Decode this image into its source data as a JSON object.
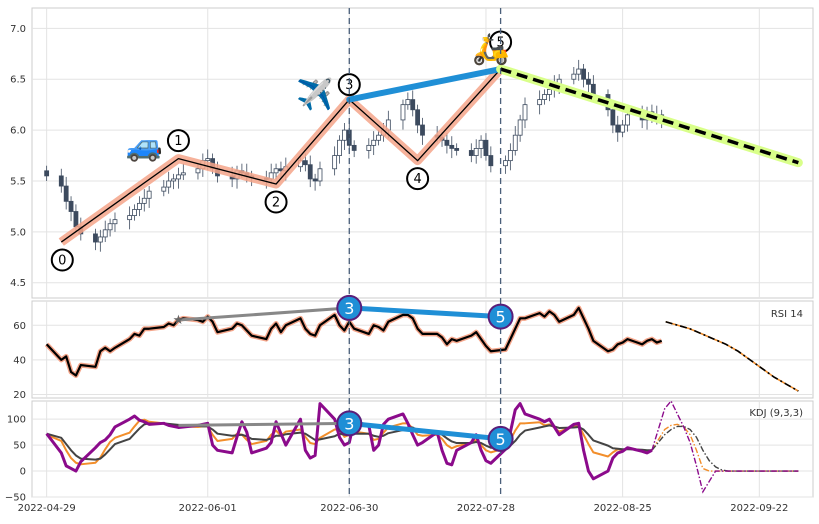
{
  "chart_data": [
    {
      "panel": "price",
      "type": "candlestick",
      "title": "",
      "ylim": [
        4.35,
        7.2
      ],
      "yticks": [
        4.5,
        5.0,
        5.5,
        6.0,
        6.5,
        7.0
      ],
      "ytick_labels": [
        "4.5",
        "5.0",
        "5.5",
        "6.0",
        "6.5",
        "7.0"
      ],
      "xlim": [
        "2022-04-26",
        "2022-10-03"
      ],
      "xticks": [
        "2022-04-29",
        "2022-06-01",
        "2022-06-30",
        "2022-07-28",
        "2022-08-25",
        "2022-09-22"
      ],
      "grid": true,
      "ohlc_close": [
        5.55,
        5.45,
        5.3,
        5.2,
        5.05,
        4.98,
        4.9,
        4.95,
        5.02,
        5.08,
        5.12,
        5.16,
        5.22,
        5.28,
        5.33,
        5.4,
        5.44,
        5.5,
        5.52,
        5.56,
        5.58,
        5.62,
        5.7,
        5.72,
        5.62,
        5.55,
        5.52,
        5.6,
        5.58,
        5.55,
        5.53,
        5.52,
        5.58,
        5.62,
        5.6,
        5.64,
        5.7,
        5.66,
        5.52,
        5.5,
        5.62,
        5.75,
        5.9,
        6.0,
        5.85,
        5.8,
        5.85,
        5.9,
        5.95,
        6.0,
        6.1,
        6.25,
        6.3,
        6.2,
        6.05,
        5.95,
        5.93,
        5.9,
        5.85,
        5.82,
        5.8,
        5.75,
        5.82,
        5.9,
        5.75,
        5.65,
        5.7,
        5.8,
        5.95,
        6.1,
        6.25,
        6.3,
        6.35,
        6.4,
        6.45,
        6.5,
        6.55,
        6.6,
        6.5,
        6.45,
        6.35,
        6.2,
        6.05,
        5.98,
        6.05,
        6.15,
        6.1,
        6.18,
        6.12,
        6.15,
        6.1
      ],
      "zigzag_points": [
        {
          "label": "0",
          "date": "2022-05-02",
          "price": 4.9
        },
        {
          "label": "1",
          "date": "2022-05-26",
          "price": 5.72
        },
        {
          "label": "2",
          "date": "2022-06-15",
          "price": 5.47
        },
        {
          "label": "3",
          "date": "2022-06-30",
          "price": 6.3
        },
        {
          "label": "4",
          "date": "2022-07-14",
          "price": 5.7
        },
        {
          "label": "5",
          "date": "2022-07-31",
          "price": 6.6
        }
      ],
      "projection": {
        "from": {
          "date": "2022-07-31",
          "price": 6.6
        },
        "to": {
          "date": "2022-09-30",
          "price": 5.68
        }
      },
      "divergence_line": {
        "from": "3",
        "to": "5"
      },
      "vlines": [
        "2022-06-30",
        "2022-07-31"
      ],
      "icons": [
        {
          "name": "car-icon",
          "glyph": "🚙",
          "date": "2022-05-19",
          "price": 5.75
        },
        {
          "name": "airplane-icon",
          "glyph": "✈️",
          "date": "2022-06-23",
          "price": 6.25
        },
        {
          "name": "scooter-icon",
          "glyph": "🛵",
          "date": "2022-07-29",
          "price": 6.7
        }
      ],
      "colors": {
        "up": "#ffffff",
        "down": "#3c4a5e",
        "zigzag": "#000000",
        "zigzag_glow": "#f4a58a",
        "blue": "#1f8fd6",
        "projection": "#000000",
        "projection_glow": "#d9ff8a",
        "vline": "#4a5f7a"
      }
    },
    {
      "panel": "rsi",
      "type": "line",
      "legend": "RSI 14",
      "ylim": [
        18,
        74
      ],
      "yticks": [
        20,
        40,
        60
      ],
      "ytick_labels": [
        "20",
        "40",
        "60"
      ],
      "values": [
        49,
        40,
        42,
        33,
        31,
        37,
        36,
        45,
        47,
        45,
        47,
        52,
        55,
        54,
        58,
        58,
        59,
        61,
        60,
        63,
        64,
        63,
        62,
        65,
        62,
        56,
        58,
        61,
        60,
        57,
        54,
        52,
        58,
        61,
        56,
        60,
        64,
        58,
        55,
        54,
        60,
        66,
        60,
        57,
        62,
        58,
        55,
        60,
        59,
        57,
        62,
        66,
        66,
        64,
        58,
        55,
        55,
        53,
        49,
        52,
        51,
        54,
        56,
        52,
        48,
        45,
        46,
        52,
        58,
        64,
        64,
        67,
        65,
        68,
        66,
        62,
        66,
        70,
        64,
        58,
        51,
        45,
        46,
        49,
        50,
        52,
        49,
        51,
        52,
        50,
        51
      ],
      "projection": [
        62,
        60,
        58,
        55,
        52,
        49,
        45,
        40,
        35,
        30,
        26,
        22
      ],
      "markers": [
        {
          "label": "3",
          "date": "2022-06-30",
          "value": 70
        },
        {
          "label": "5",
          "date": "2022-07-31",
          "value": 65
        }
      ],
      "gray_line": {
        "from": {
          "date": "2022-05-26",
          "value": 63
        },
        "to": {
          "date": "2022-06-30",
          "value": 70
        }
      },
      "colors": {
        "line": "#000000",
        "glow": "#f4a58a",
        "blue": "#1f8fd6",
        "gray": "#888888",
        "proj_a": "#000000",
        "proj_b": "#f28e2b"
      }
    },
    {
      "panel": "kdj",
      "type": "line",
      "legend": "KDJ (9,3,3)",
      "ylim": [
        -50,
        135
      ],
      "yticks": [
        -50,
        0,
        50,
        100
      ],
      "ytick_labels": [
        "−50",
        "0",
        "50",
        "100"
      ],
      "series": [
        {
          "key": "K",
          "color": "#f28e2b",
          "values": [
            70,
            58,
            40,
            25,
            16,
            13,
            16,
            26,
            42,
            56,
            64,
            74,
            86,
            97,
            99,
            95,
            92,
            90,
            88,
            88,
            86,
            85,
            86,
            86,
            70,
            58,
            62,
            72,
            70,
            60,
            52,
            58,
            70,
            78,
            68,
            76,
            80,
            66,
            54,
            52,
            64,
            80,
            80,
            66,
            70,
            76,
            72,
            60,
            62,
            74,
            84,
            92,
            92,
            82,
            70,
            68,
            70,
            62,
            50,
            44,
            48,
            54,
            60,
            50,
            40,
            36,
            44,
            60,
            78,
            92,
            92,
            94,
            88,
            90,
            84,
            76,
            86,
            88,
            70,
            52,
            36,
            28,
            36,
            42,
            40,
            44,
            40,
            38,
            40
          ]
        },
        {
          "key": "D",
          "color": "#444444",
          "values": [
            72,
            64,
            52,
            40,
            30,
            24,
            22,
            24,
            32,
            42,
            52,
            62,
            72,
            82,
            90,
            92,
            92,
            91,
            90,
            89,
            88,
            87,
            86,
            86,
            80,
            72,
            68,
            69,
            70,
            67,
            62,
            60,
            63,
            68,
            68,
            71,
            74,
            72,
            66,
            60,
            61,
            67,
            72,
            70,
            70,
            72,
            72,
            68,
            66,
            68,
            73,
            79,
            84,
            84,
            79,
            75,
            73,
            70,
            63,
            57,
            54,
            54,
            56,
            54,
            49,
            45,
            44,
            49,
            58,
            70,
            78,
            84,
            86,
            88,
            86,
            83,
            84,
            85,
            80,
            70,
            59,
            49,
            44,
            43,
            42,
            42,
            41,
            40,
            40
          ]
        },
        {
          "key": "J",
          "color": "#8b0a8b",
          "values": [
            72,
            35,
            10,
            5,
            0,
            18,
            45,
            55,
            60,
            70,
            85,
            100,
            106,
            98,
            95,
            90,
            92,
            88,
            86,
            84,
            85,
            88,
            90,
            92,
            50,
            40,
            35,
            66,
            95,
            75,
            35,
            44,
            55,
            95,
            72,
            50,
            100,
            40,
            25,
            30,
            130,
            100,
            65,
            50,
            55,
            95,
            88,
            40,
            50,
            90,
            100,
            110,
            92,
            70,
            50,
            55,
            75,
            40,
            15,
            12,
            40,
            55,
            70,
            40,
            20,
            15,
            42,
            75,
            118,
            130,
            110,
            100,
            95,
            100,
            85,
            70,
            90,
            92,
            40,
            0,
            -15,
            0,
            25,
            35,
            38,
            45,
            38,
            35,
            40
          ]
        }
      ],
      "projection": {
        "K": [
          40,
          60,
          80,
          88,
          90,
          85,
          70,
          40,
          5,
          0,
          0,
          0,
          0,
          0,
          0,
          0,
          0,
          0,
          0,
          0,
          0,
          0,
          0,
          0
        ],
        "D": [
          40,
          55,
          70,
          80,
          86,
          86,
          80,
          65,
          40,
          20,
          8,
          2,
          0,
          0,
          0,
          0,
          0,
          0,
          0,
          0,
          0,
          0,
          0,
          0
        ],
        "J": [
          40,
          80,
          120,
          135,
          110,
          85,
          55,
          10,
          -40,
          -20,
          0,
          0,
          0,
          0,
          0,
          0,
          0,
          0,
          0,
          0,
          0,
          0,
          0,
          0
        ]
      },
      "markers": [
        {
          "label": "3",
          "date": "2022-06-30",
          "value": 92
        },
        {
          "label": "5",
          "date": "2022-07-31",
          "value": 62
        }
      ],
      "gray_line": {
        "from": {
          "date": "2022-05-26",
          "value": 88
        },
        "to": {
          "date": "2022-06-30",
          "value": 92
        }
      },
      "colors": {
        "blue": "#1f8fd6",
        "gray": "#888888"
      }
    }
  ]
}
